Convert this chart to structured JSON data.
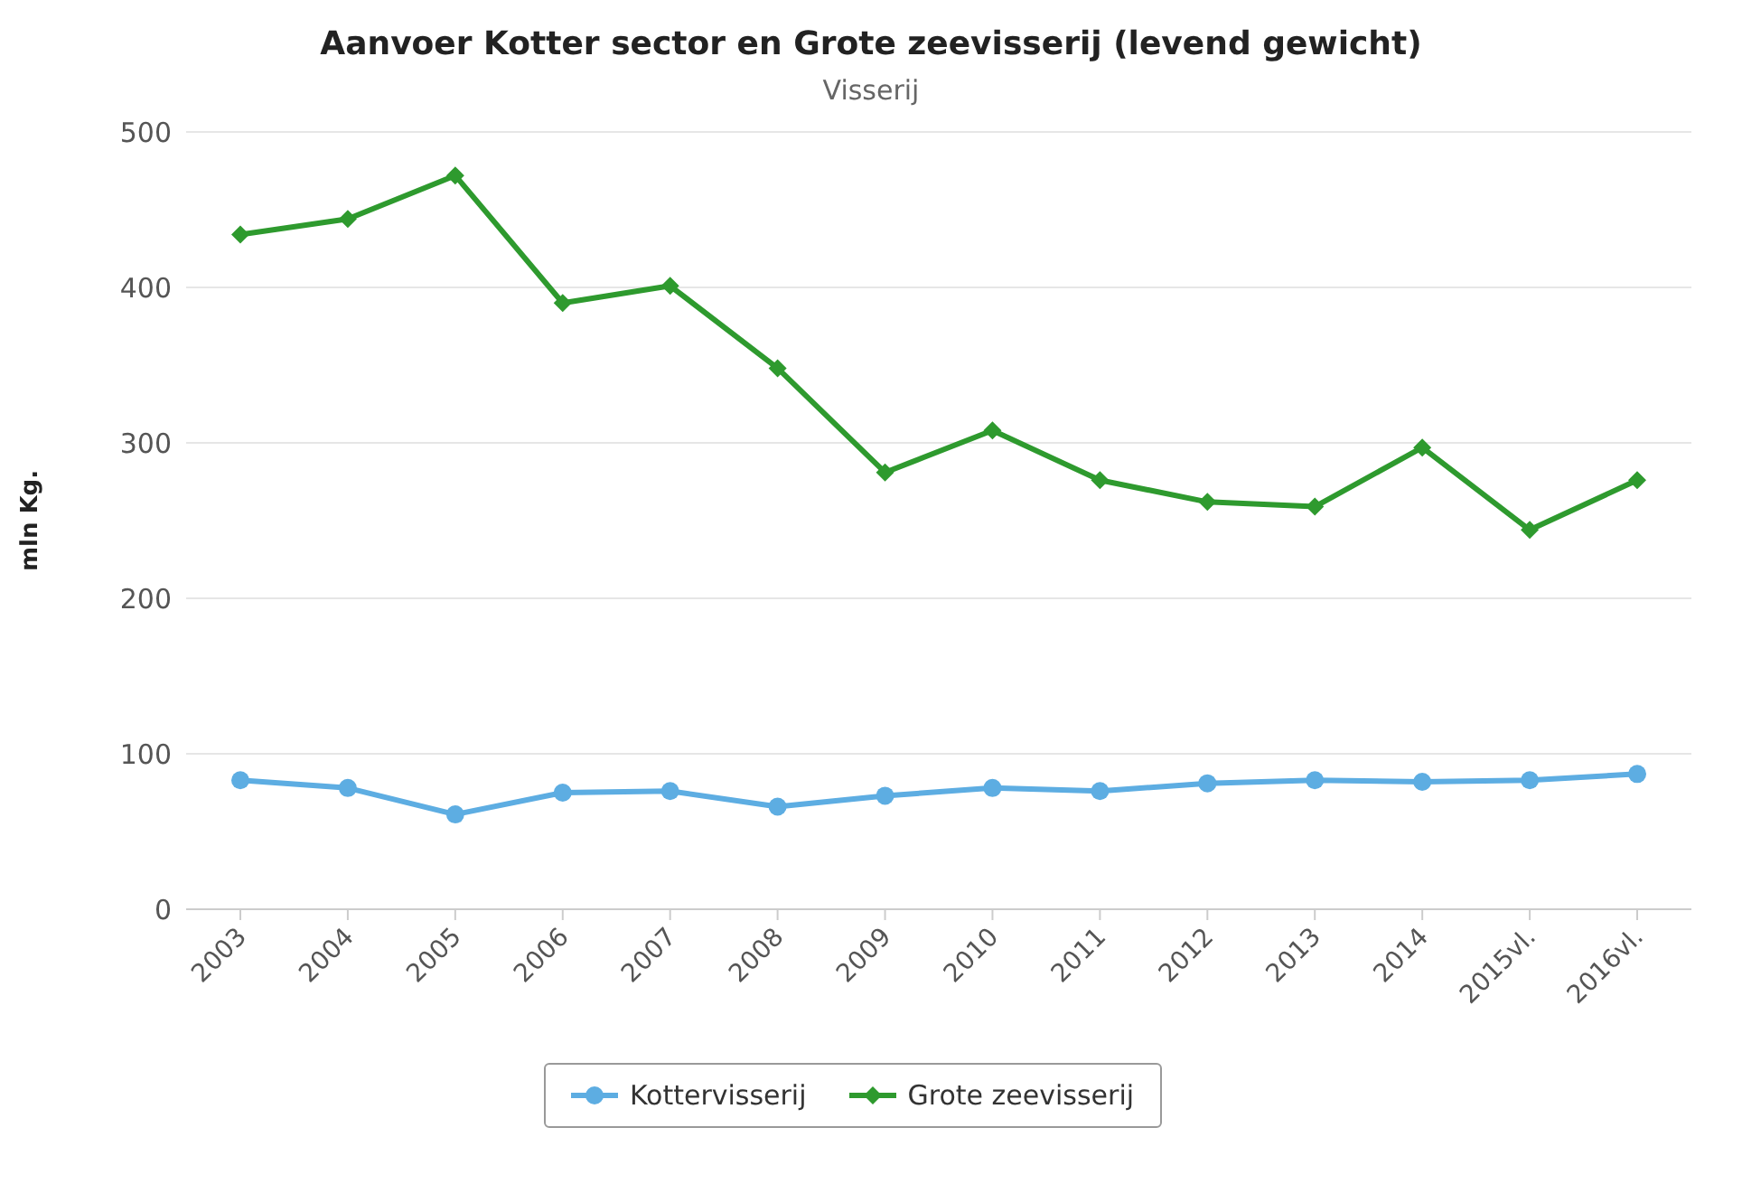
{
  "chart_data": {
    "type": "line",
    "title": "Aanvoer Kotter sector en Grote zeevisserij (levend gewicht)",
    "subtitle": "Visserij",
    "ylabel": "mln Kg.",
    "categories": [
      "2003",
      "2004",
      "2005",
      "2006",
      "2007",
      "2008",
      "2009",
      "2010",
      "2011",
      "2012",
      "2013",
      "2014",
      "2015vl.",
      "2016vl."
    ],
    "series": [
      {
        "name": "Kottervisserij",
        "color": "#5dade2",
        "marker": "circle",
        "values": [
          83,
          78,
          61,
          75,
          76,
          66,
          73,
          78,
          76,
          81,
          83,
          82,
          83,
          87
        ]
      },
      {
        "name": "Grote zeevisserij",
        "color": "#2e9a2e",
        "marker": "diamond",
        "values": [
          434,
          444,
          472,
          390,
          401,
          348,
          281,
          308,
          276,
          262,
          259,
          297,
          244,
          276
        ]
      }
    ],
    "ylim": [
      0,
      500
    ],
    "yticks": [
      0,
      100,
      200,
      300,
      400,
      500
    ],
    "grid": "y",
    "legend": "bottom"
  }
}
